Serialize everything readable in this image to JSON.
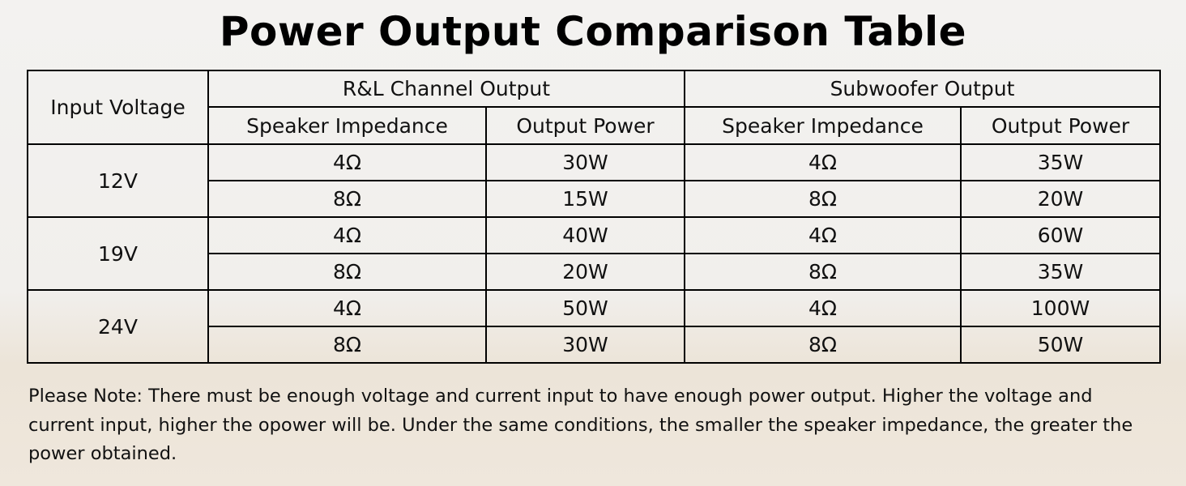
{
  "header": {
    "title": "Power Output Comparison Table"
  },
  "table": {
    "first_column": "Input Voltage",
    "groups": [
      {
        "title": "R&L Channel Output",
        "columns": [
          "Speaker Impedance",
          "Output Power"
        ]
      },
      {
        "title": "Subwoofer Output",
        "columns": [
          "Speaker Impedance",
          "Output Power"
        ]
      }
    ],
    "rows": [
      {
        "voltage": "12V",
        "cells": [
          [
            "4Ω",
            "30W",
            "4Ω",
            "35W"
          ],
          [
            "8Ω",
            "15W",
            "8Ω",
            "20W"
          ]
        ]
      },
      {
        "voltage": "19V",
        "cells": [
          [
            "4Ω",
            "40W",
            "4Ω",
            "60W"
          ],
          [
            "8Ω",
            "20W",
            "8Ω",
            "35W"
          ]
        ]
      },
      {
        "voltage": "24V",
        "cells": [
          [
            "4Ω",
            "50W",
            "4Ω",
            "100W"
          ],
          [
            "8Ω",
            "30W",
            "8Ω",
            "50W"
          ]
        ]
      }
    ]
  },
  "note": "Please Note: There must be enough voltage and current input to have enough power output. Higher the voltage and current input, higher the opower will be. Under the same conditions, the smaller the speaker impedance, the greater the power obtained."
}
